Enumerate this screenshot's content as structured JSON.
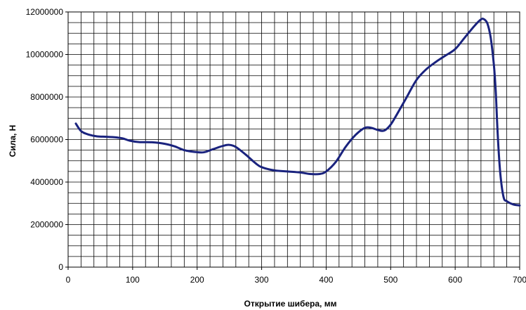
{
  "chart_data": {
    "type": "line",
    "title": "",
    "xlabel": "Открытие шибера, мм",
    "ylabel": "Сила, Н",
    "xlim": [
      0,
      700
    ],
    "ylim": [
      0,
      12000000
    ],
    "x_ticks": [
      "0",
      "100",
      "200",
      "300",
      "400",
      "500",
      "600",
      "700"
    ],
    "y_ticks": [
      "0",
      "2000000",
      "4000000",
      "6000000",
      "8000000",
      "10000000",
      "12000000"
    ],
    "grid": true,
    "legend": "none",
    "line_color": "#1a237e",
    "series": [
      {
        "x": [
          12,
          20,
          30,
          45,
          60,
          75,
          85,
          95,
          110,
          130,
          150,
          165,
          180,
          195,
          210,
          225,
          240,
          250,
          260,
          275,
          290,
          300,
          320,
          340,
          360,
          375,
          390,
          400,
          415,
          430,
          445,
          460,
          470,
          480,
          490,
          500,
          510,
          525,
          540,
          555,
          570,
          585,
          600,
          615,
          630,
          640,
          645,
          650,
          655,
          660,
          663,
          666,
          670,
          675,
          680,
          690,
          700
        ],
        "values": [
          6750000,
          6400000,
          6250000,
          6150000,
          6130000,
          6100000,
          6050000,
          5950000,
          5880000,
          5870000,
          5800000,
          5680000,
          5500000,
          5420000,
          5400000,
          5550000,
          5700000,
          5750000,
          5650000,
          5300000,
          4900000,
          4700000,
          4550000,
          4500000,
          4450000,
          4380000,
          4380000,
          4500000,
          4950000,
          5650000,
          6200000,
          6550000,
          6550000,
          6450000,
          6420000,
          6700000,
          7200000,
          8000000,
          8800000,
          9300000,
          9650000,
          9950000,
          10250000,
          10800000,
          11350000,
          11650000,
          11650000,
          11450000,
          10800000,
          9500000,
          8200000,
          6200000,
          4400000,
          3300000,
          3100000,
          2950000,
          2900000
        ]
      }
    ]
  }
}
